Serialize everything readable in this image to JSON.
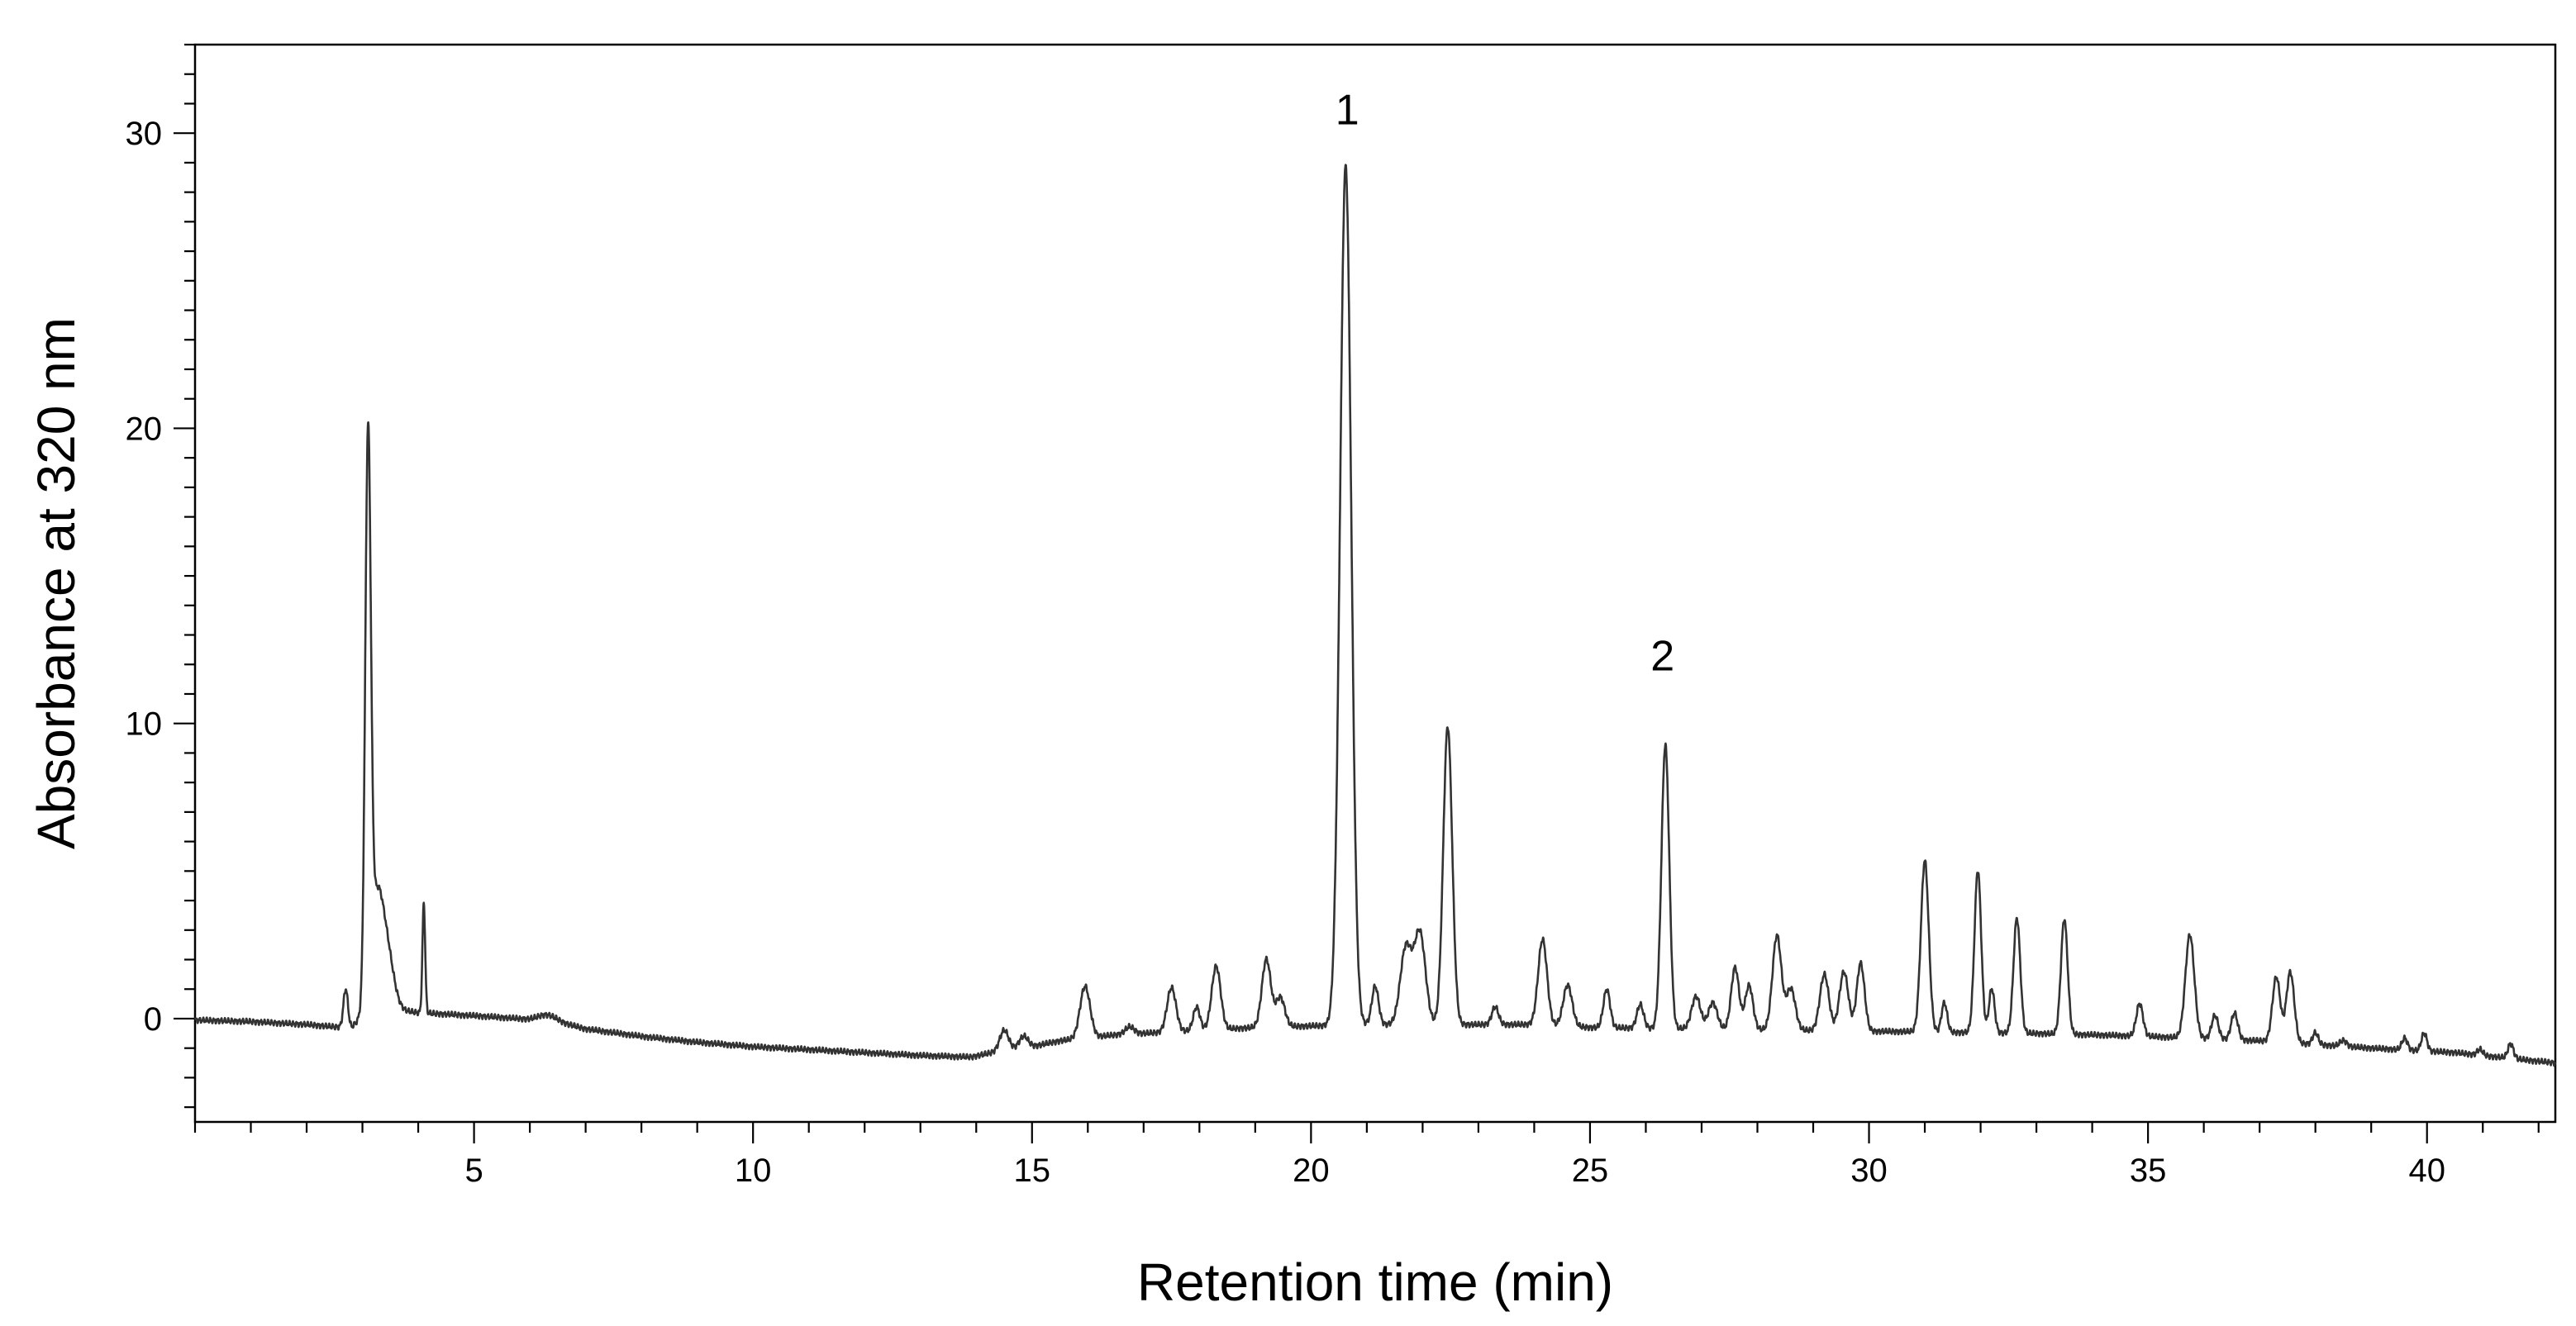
{
  "chart_data": {
    "type": "line",
    "xlabel": "Retention time (min)",
    "ylabel": "Absorbance at 320 nm",
    "xlim": [
      0,
      42.3
    ],
    "ylim": [
      -3.5,
      33
    ],
    "x_ticks": [
      5,
      10,
      15,
      20,
      25,
      30,
      35,
      40
    ],
    "y_ticks": [
      0,
      10,
      20,
      30
    ],
    "x_minor_step": 1,
    "y_minor_step": 1,
    "grid": false,
    "legend": "none",
    "line_color": "#333333",
    "annotations": [
      {
        "text": "1",
        "x": 20.65,
        "y": 30.3
      },
      {
        "text": "2",
        "x": 26.3,
        "y": 11.8
      }
    ],
    "series": [
      {
        "baseline": [
          [
            0.0,
            -0.05
          ],
          [
            1.0,
            -0.1
          ],
          [
            2.0,
            -0.2
          ],
          [
            2.5,
            -0.28
          ],
          [
            2.8,
            -0.3
          ],
          [
            3.3,
            0.5
          ],
          [
            3.6,
            0.3
          ],
          [
            4.0,
            0.2
          ],
          [
            4.5,
            0.15
          ],
          [
            5.0,
            0.1
          ],
          [
            5.8,
            0.0
          ],
          [
            6.5,
            -0.1
          ],
          [
            7.0,
            -0.35
          ],
          [
            8.0,
            -0.6
          ],
          [
            9.0,
            -0.8
          ],
          [
            10.0,
            -0.95
          ],
          [
            11.0,
            -1.05
          ],
          [
            12.0,
            -1.15
          ],
          [
            13.0,
            -1.25
          ],
          [
            13.9,
            -1.3
          ],
          [
            14.3,
            -1.15
          ],
          [
            15.0,
            -0.95
          ],
          [
            15.5,
            -0.75
          ],
          [
            16.5,
            -0.55
          ],
          [
            17.5,
            -0.45
          ],
          [
            19.0,
            -0.3
          ],
          [
            20.0,
            -0.25
          ],
          [
            21.0,
            -0.2
          ],
          [
            22.5,
            -0.2
          ],
          [
            24.0,
            -0.2
          ],
          [
            25.0,
            -0.3
          ],
          [
            27.0,
            -0.35
          ],
          [
            29.0,
            -0.4
          ],
          [
            31.0,
            -0.45
          ],
          [
            33.0,
            -0.5
          ],
          [
            35.0,
            -0.6
          ],
          [
            37.0,
            -0.75
          ],
          [
            39.0,
            -1.0
          ],
          [
            40.5,
            -1.15
          ],
          [
            41.5,
            -1.35
          ],
          [
            42.3,
            -1.5
          ]
        ],
        "peaks": [
          [
            2.7,
            1.3,
            0.04
          ],
          [
            3.1,
            18.4,
            0.05
          ],
          [
            3.25,
            3.5,
            0.12
          ],
          [
            3.45,
            1.6,
            0.12
          ],
          [
            4.1,
            3.7,
            0.025
          ],
          [
            6.3,
            0.2,
            0.15
          ],
          [
            14.5,
            0.7,
            0.08
          ],
          [
            14.85,
            0.4,
            0.08
          ],
          [
            15.95,
            1.75,
            0.09
          ],
          [
            16.75,
            0.25,
            0.08
          ],
          [
            17.5,
            1.5,
            0.08
          ],
          [
            17.95,
            0.8,
            0.06
          ],
          [
            18.3,
            2.15,
            0.08
          ],
          [
            19.2,
            2.3,
            0.08
          ],
          [
            19.45,
            1.0,
            0.08
          ],
          [
            20.62,
            29.1,
            0.1
          ],
          [
            21.15,
            1.3,
            0.06
          ],
          [
            21.7,
            2.6,
            0.1
          ],
          [
            21.95,
            3.1,
            0.1
          ],
          [
            22.45,
            10.1,
            0.08
          ],
          [
            23.3,
            0.6,
            0.06
          ],
          [
            24.15,
            2.9,
            0.08
          ],
          [
            24.6,
            1.4,
            0.08
          ],
          [
            25.3,
            1.3,
            0.06
          ],
          [
            25.9,
            0.8,
            0.06
          ],
          [
            26.35,
            9.6,
            0.07
          ],
          [
            26.9,
            1.1,
            0.08
          ],
          [
            27.2,
            0.9,
            0.08
          ],
          [
            27.6,
            2.1,
            0.07
          ],
          [
            27.85,
            1.5,
            0.07
          ],
          [
            28.35,
            3.2,
            0.08
          ],
          [
            28.6,
            1.4,
            0.08
          ],
          [
            29.2,
            1.9,
            0.08
          ],
          [
            29.55,
            2.0,
            0.08
          ],
          [
            29.85,
            2.3,
            0.07
          ],
          [
            31.0,
            5.8,
            0.07
          ],
          [
            31.35,
            1.0,
            0.05
          ],
          [
            31.95,
            5.5,
            0.06
          ],
          [
            32.2,
            1.5,
            0.05
          ],
          [
            32.65,
            3.9,
            0.06
          ],
          [
            33.5,
            3.9,
            0.06
          ],
          [
            34.85,
            1.1,
            0.06
          ],
          [
            35.75,
            3.5,
            0.08
          ],
          [
            36.2,
            0.8,
            0.06
          ],
          [
            36.55,
            0.9,
            0.06
          ],
          [
            37.3,
            2.2,
            0.07
          ],
          [
            37.55,
            2.4,
            0.07
          ],
          [
            38.0,
            0.4,
            0.05
          ],
          [
            38.5,
            0.2,
            0.06
          ],
          [
            39.6,
            0.4,
            0.05
          ],
          [
            39.95,
            0.6,
            0.05
          ],
          [
            40.95,
            0.2,
            0.05
          ],
          [
            41.5,
            0.5,
            0.05
          ]
        ]
      }
    ]
  }
}
